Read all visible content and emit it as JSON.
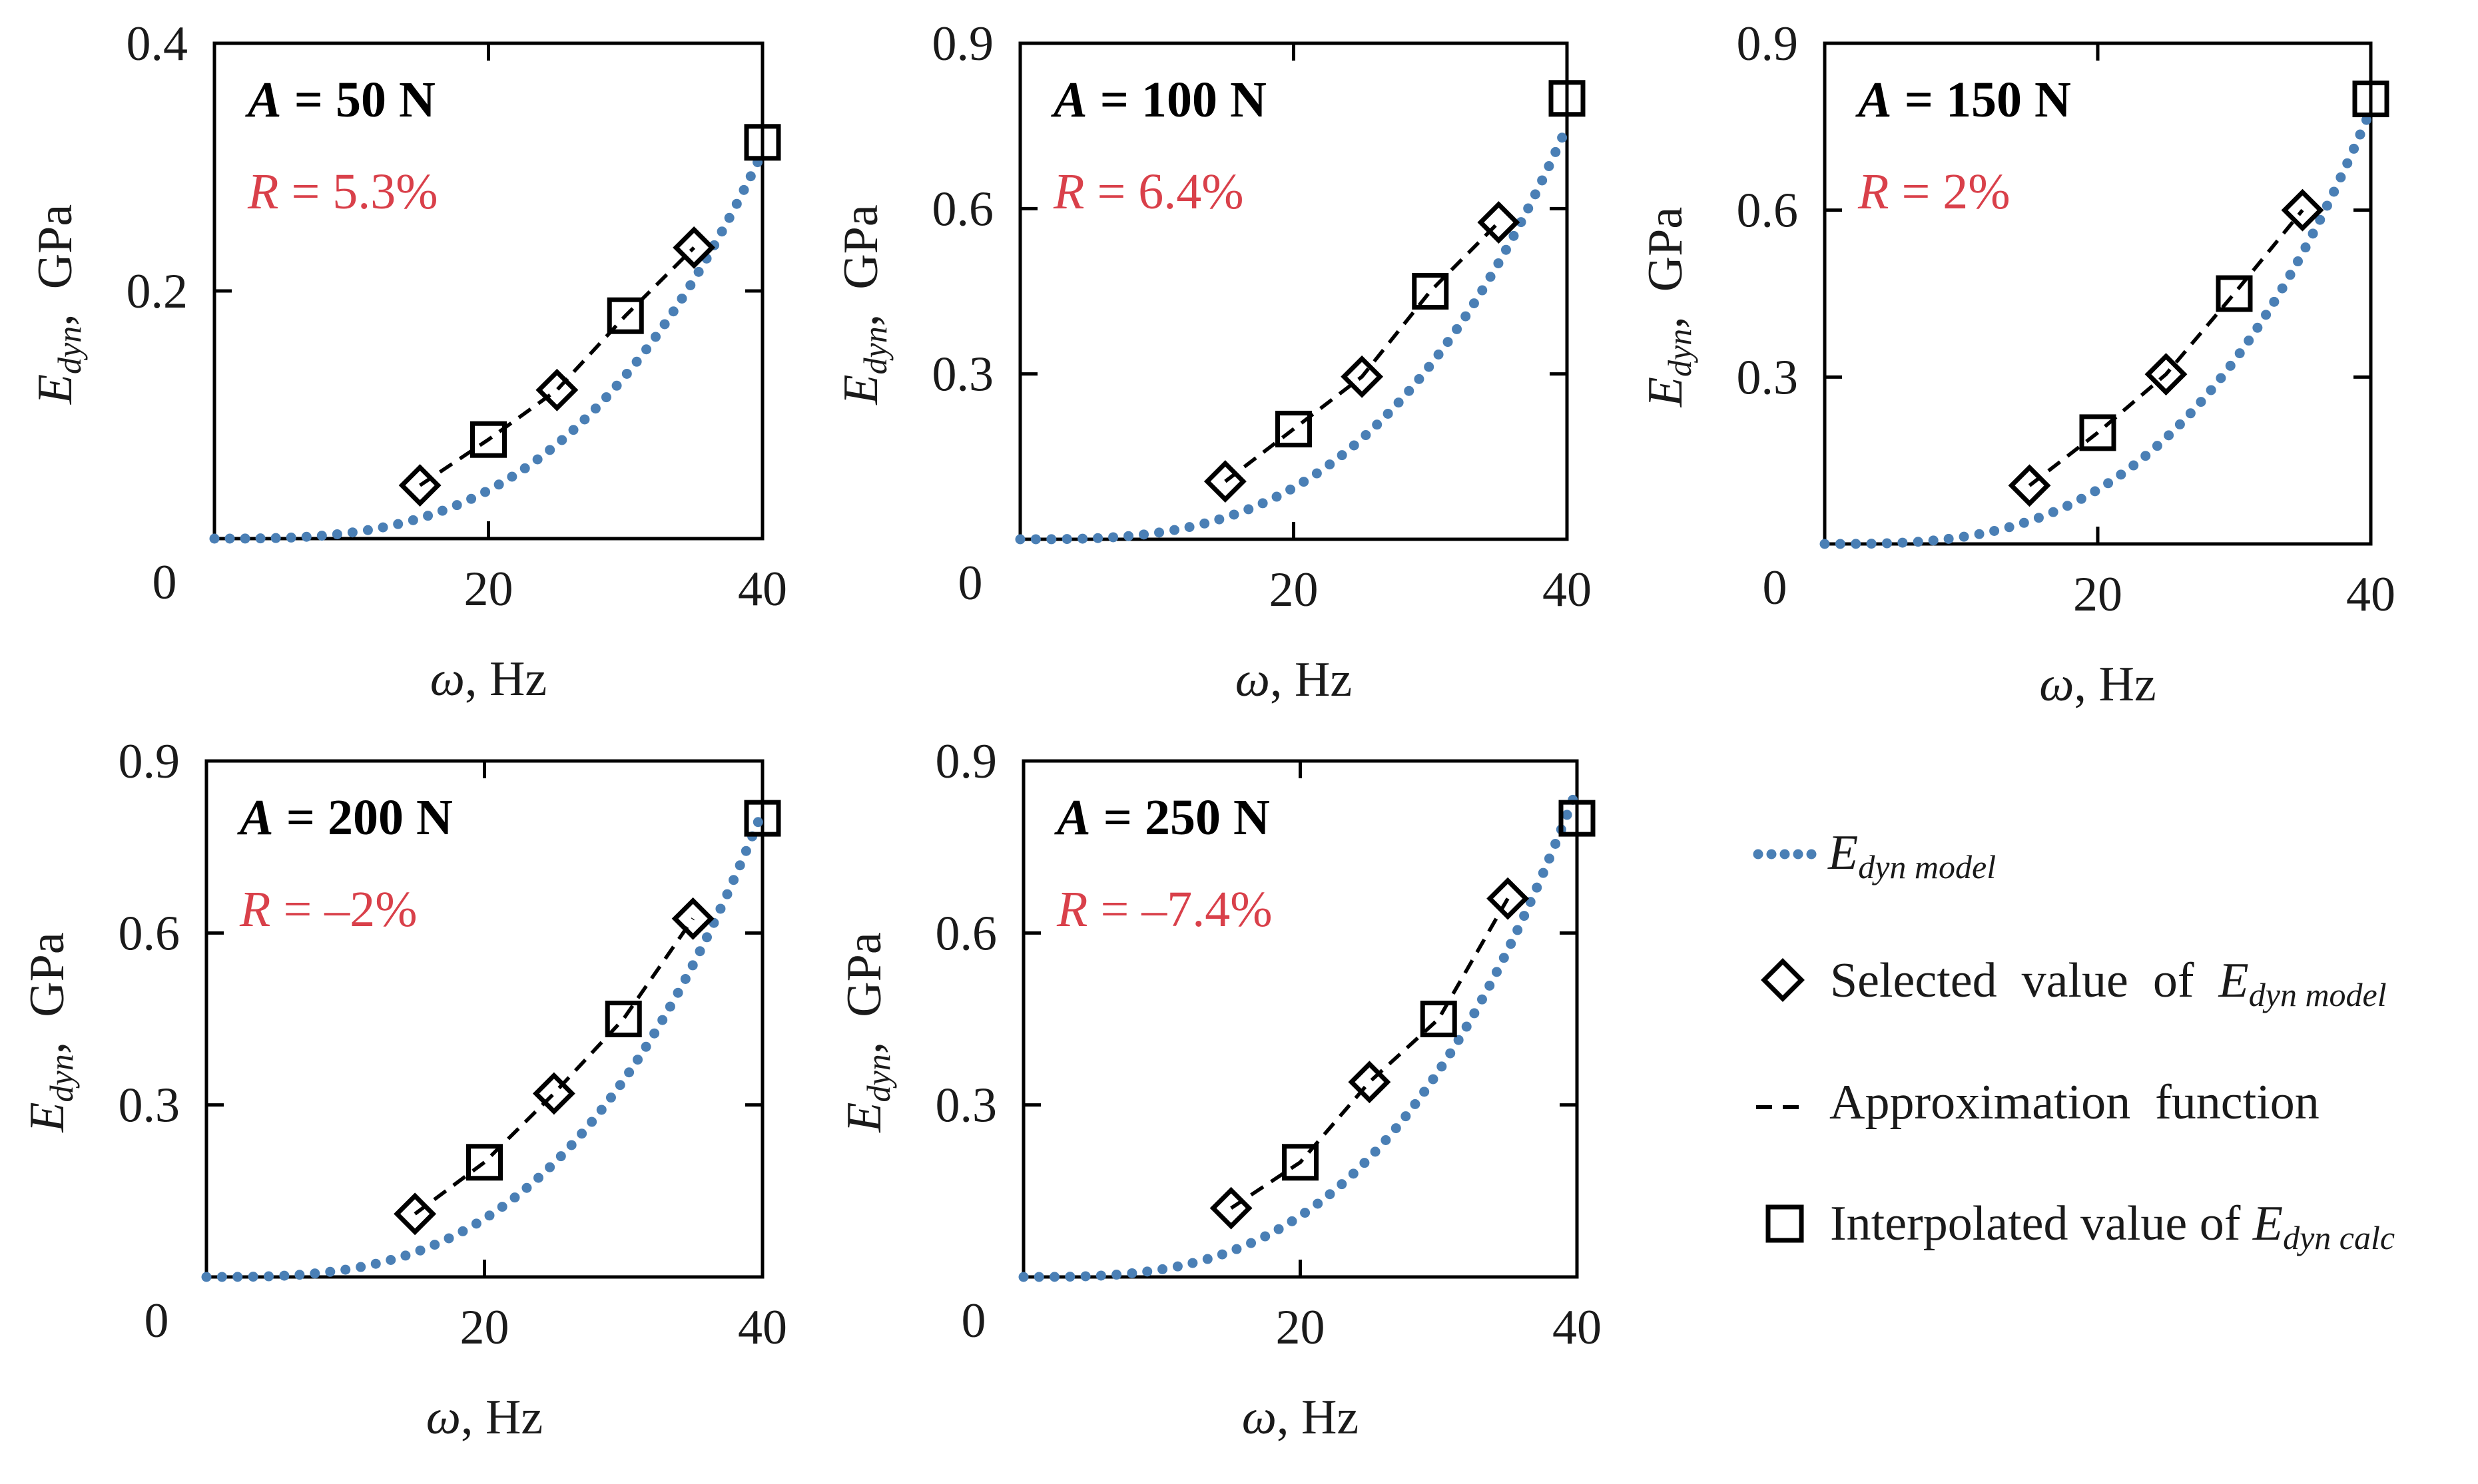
{
  "chart_data": [
    {
      "type": "line",
      "panel": "A = 50 N",
      "annotation_a_var": "A",
      "annotation_a_val": " = 50 N",
      "annotation_r_var": "R",
      "annotation_r_val": " = 5.3%",
      "xlabel": "ω, Hz",
      "ylabel": "E_dyn, GPa",
      "xlim": [
        0,
        40
      ],
      "ylim": [
        0,
        0.4
      ],
      "x_ticks": [
        20,
        40
      ],
      "x_tick_labels": [
        "20",
        "40"
      ],
      "y_ticks": [
        0.2,
        0.4
      ],
      "y_tick_labels": [
        "0.2",
        "0.4"
      ],
      "origin_label": "0",
      "series": [
        {
          "name": "E_dyn model",
          "style": "dotted",
          "curve": "power",
          "coef": 4.88e-06,
          "exponent": 3,
          "x_range": [
            0,
            40
          ]
        },
        {
          "name": "Selected value of E_dyn model",
          "marker": "diamond",
          "x": [
            15,
            25,
            35
          ],
          "y": [
            0.043,
            0.12,
            0.235
          ]
        },
        {
          "name": "Approximation function",
          "style": "dashed",
          "x": [
            15,
            20,
            25,
            30,
            35
          ],
          "y": [
            0.043,
            0.08,
            0.12,
            0.18,
            0.235
          ]
        },
        {
          "name": "Interpolated value of E_dyn calc",
          "marker": "square",
          "x": [
            20,
            30,
            40
          ],
          "y": [
            0.08,
            0.18,
            0.32
          ]
        }
      ]
    },
    {
      "type": "line",
      "panel": "A = 100 N",
      "annotation_a_var": "A",
      "annotation_a_val": " = 100 N",
      "annotation_r_var": "R",
      "annotation_r_val": " = 6.4%",
      "xlabel": "ω, Hz",
      "ylabel": "E_dyn, GPa",
      "xlim": [
        0,
        40
      ],
      "ylim": [
        0,
        0.9
      ],
      "x_ticks": [
        20,
        40
      ],
      "x_tick_labels": [
        "20",
        "40"
      ],
      "y_ticks": [
        0.3,
        0.6,
        0.9
      ],
      "y_tick_labels": [
        "0.3",
        "0.6",
        "0.9"
      ],
      "origin_label": "0",
      "series": [
        {
          "name": "E_dyn model",
          "style": "dotted",
          "curve": "power",
          "coef": 1.17e-05,
          "exponent": 3,
          "x_range": [
            0,
            40
          ]
        },
        {
          "name": "Selected value of E_dyn model",
          "marker": "diamond",
          "x": [
            15,
            25,
            35
          ],
          "y": [
            0.105,
            0.295,
            0.575
          ]
        },
        {
          "name": "Approximation function",
          "style": "dashed",
          "x": [
            15,
            20,
            25,
            30,
            35
          ],
          "y": [
            0.105,
            0.2,
            0.295,
            0.45,
            0.575
          ]
        },
        {
          "name": "Interpolated value of E_dyn calc",
          "marker": "square",
          "x": [
            20,
            30,
            40
          ],
          "y": [
            0.2,
            0.45,
            0.8
          ]
        }
      ]
    },
    {
      "type": "line",
      "panel": "A = 150 N",
      "annotation_a_var": "A",
      "annotation_a_val": " = 150 N",
      "annotation_r_var": "R",
      "annotation_r_val": " = 2%",
      "xlabel": "ω, Hz",
      "ylabel": "E_dyn, GPa",
      "xlim": [
        0,
        40
      ],
      "ylim": [
        0,
        0.9
      ],
      "x_ticks": [
        20,
        40
      ],
      "x_tick_labels": [
        "20",
        "40"
      ],
      "y_ticks": [
        0.3,
        0.6,
        0.9
      ],
      "y_tick_labels": [
        "0.3",
        "0.6",
        "0.9"
      ],
      "origin_label": "0",
      "series": [
        {
          "name": "E_dyn model",
          "style": "dotted",
          "curve": "power",
          "coef": 1.22e-05,
          "exponent": 3,
          "x_range": [
            0,
            40
          ]
        },
        {
          "name": "Selected value of E_dyn model",
          "marker": "diamond",
          "x": [
            15,
            25,
            35
          ],
          "y": [
            0.105,
            0.305,
            0.6
          ]
        },
        {
          "name": "Approximation function",
          "style": "dashed",
          "x": [
            15,
            20,
            25,
            30,
            35
          ],
          "y": [
            0.105,
            0.2,
            0.305,
            0.45,
            0.6
          ]
        },
        {
          "name": "Interpolated value of E_dyn calc",
          "marker": "square",
          "x": [
            20,
            30,
            40
          ],
          "y": [
            0.2,
            0.45,
            0.8
          ]
        }
      ]
    },
    {
      "type": "line",
      "panel": "A = 200 N",
      "annotation_a_var": "A",
      "annotation_a_val": " = 200 N",
      "annotation_r_var": "R",
      "annotation_r_val": " = –2%",
      "xlabel": "ω, Hz",
      "ylabel": "E_dyn, GPa",
      "xlim": [
        0,
        40
      ],
      "ylim": [
        0,
        0.9
      ],
      "x_ticks": [
        20,
        40
      ],
      "x_tick_labels": [
        "20",
        "40"
      ],
      "y_ticks": [
        0.3,
        0.6,
        0.9
      ],
      "y_tick_labels": [
        "0.3",
        "0.6",
        "0.9"
      ],
      "origin_label": "0",
      "series": [
        {
          "name": "E_dyn model",
          "style": "dotted",
          "curve": "power",
          "coef": 1.27e-05,
          "exponent": 3,
          "x_range": [
            0,
            40
          ]
        },
        {
          "name": "Selected value of E_dyn model",
          "marker": "diamond",
          "x": [
            15,
            25,
            35
          ],
          "y": [
            0.11,
            0.32,
            0.625
          ]
        },
        {
          "name": "Approximation function",
          "style": "dashed",
          "x": [
            15,
            20,
            25,
            30,
            35
          ],
          "y": [
            0.11,
            0.2,
            0.32,
            0.45,
            0.625
          ]
        },
        {
          "name": "Interpolated value of E_dyn calc",
          "marker": "square",
          "x": [
            20,
            30,
            40
          ],
          "y": [
            0.2,
            0.45,
            0.8
          ]
        }
      ]
    },
    {
      "type": "line",
      "panel": "A = 250 N",
      "annotation_a_var": "A",
      "annotation_a_val": " = 250 N",
      "annotation_r_var": "R",
      "annotation_r_val": " = –7.4%",
      "xlabel": "ω, Hz",
      "ylabel": "E_dyn, GPa",
      "xlim": [
        0,
        40
      ],
      "ylim": [
        0,
        0.9
      ],
      "x_ticks": [
        20,
        40
      ],
      "x_tick_labels": [
        "20",
        "40"
      ],
      "y_ticks": [
        0.3,
        0.6,
        0.9
      ],
      "y_tick_labels": [
        "0.3",
        "0.6",
        "0.9"
      ],
      "origin_label": "0",
      "series": [
        {
          "name": "E_dyn model",
          "style": "dotted",
          "curve": "power",
          "coef": 1.33e-05,
          "exponent": 3,
          "x_range": [
            0,
            40
          ]
        },
        {
          "name": "Selected value of E_dyn model",
          "marker": "diamond",
          "x": [
            15,
            25,
            35
          ],
          "y": [
            0.12,
            0.34,
            0.66
          ]
        },
        {
          "name": "Approximation function",
          "style": "dashed",
          "x": [
            15,
            20,
            25,
            30,
            35
          ],
          "y": [
            0.12,
            0.2,
            0.34,
            0.45,
            0.66
          ]
        },
        {
          "name": "Interpolated value of E_dyn calc",
          "marker": "square",
          "x": [
            20,
            30,
            40
          ],
          "y": [
            0.2,
            0.45,
            0.8
          ]
        }
      ]
    }
  ],
  "legend": {
    "items": [
      {
        "key": "model",
        "pre_text": "",
        "var": "E",
        "sub": "dyn model"
      },
      {
        "key": "selected",
        "pre_text": "Selected  value  of  ",
        "var": "E",
        "sub": "dyn model"
      },
      {
        "key": "approx",
        "pre_text": "Approximation  function",
        "var": "",
        "sub": ""
      },
      {
        "key": "interp",
        "pre_text": "Interpolated value of ",
        "var": "E",
        "sub": "dyn calc"
      }
    ]
  },
  "labels": {
    "x_axis_var": "ω",
    "x_axis_unit": ", Hz",
    "y_axis_var": "E",
    "y_axis_sub": "dyn",
    "y_axis_unit": ",  GPa"
  },
  "colors": {
    "model_dots": "#4a7fb5",
    "r_text": "#d9404a",
    "axis": "#000000",
    "markers": "#000000"
  }
}
